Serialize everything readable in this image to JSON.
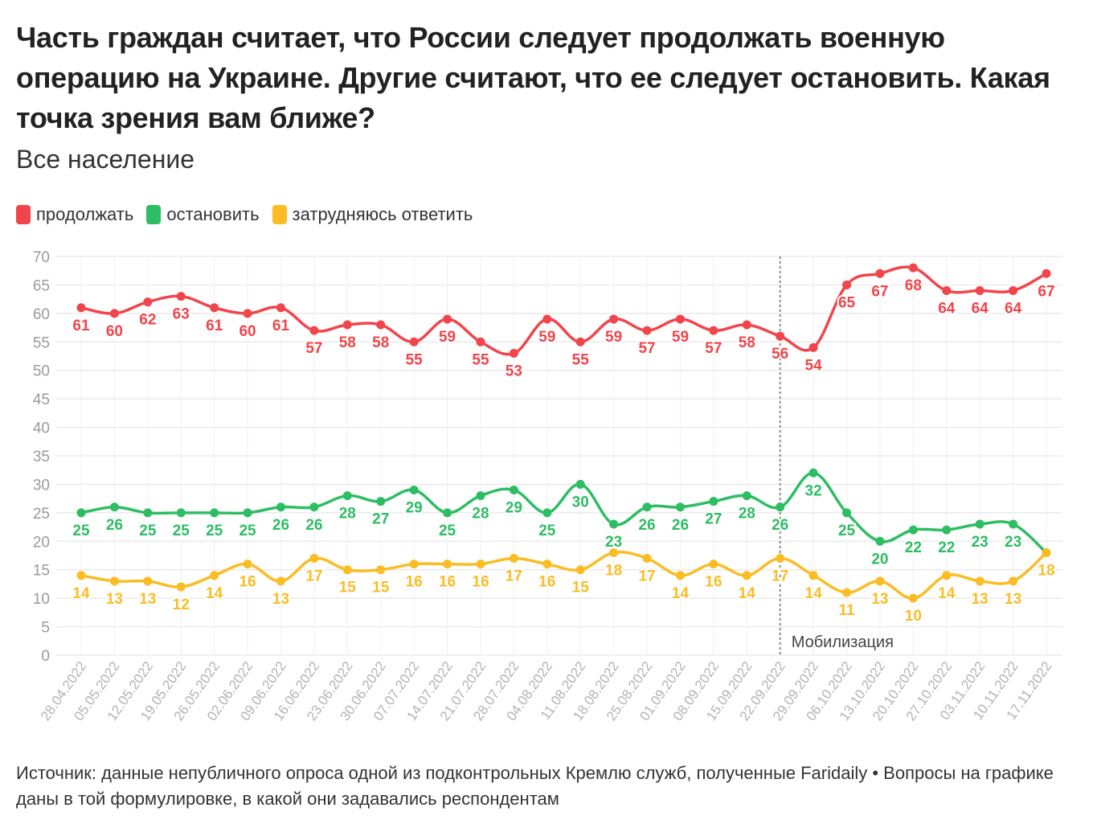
{
  "title": "Часть граждан считает, что России следует продолжать военную операцию на Украине. Другие считают, что ее следует остановить. Какая точка зрения вам ближе?",
  "subtitle": "Все население",
  "legend": [
    {
      "label": "продолжать",
      "color": "#f2444b"
    },
    {
      "label": "остановить",
      "color": "#2dbd63"
    },
    {
      "label": "затрудняюсь ответить",
      "color": "#fbbc24"
    }
  ],
  "source": "Источник: данные непубличного опроса одной из подконтрольных Кремлю служб, полученные Faridaily • Вопросы на графике даны в той формулировке, в какой они задавались респондентам",
  "chart_data": {
    "type": "line",
    "x": [
      "28.04.2022",
      "05.05.2022",
      "12.05.2022",
      "19.05.2022",
      "26.05.2022",
      "02.06.2022",
      "09.06.2022",
      "16.06.2022",
      "23.06.2022",
      "30.06.2022",
      "07.07.2022",
      "14.07.2022",
      "21.07.2022",
      "28.07.2022",
      "04.08.2022",
      "11.08.2022",
      "18.08.2022",
      "25.08.2022",
      "01.09.2022",
      "08.09.2022",
      "15.09.2022",
      "22.09.2022",
      "29.09.2022",
      "06.10.2022",
      "13.10.2022",
      "20.10.2022",
      "27.10.2022",
      "03.11.2022",
      "10.11.2022",
      "17.11.2022"
    ],
    "series": [
      {
        "name": "продолжать",
        "color": "#f2444b",
        "values": [
          61,
          60,
          62,
          63,
          61,
          60,
          61,
          57,
          58,
          58,
          55,
          59,
          55,
          53,
          59,
          55,
          59,
          57,
          59,
          57,
          58,
          56,
          54,
          65,
          67,
          68,
          64,
          64,
          64,
          67
        ]
      },
      {
        "name": "остановить",
        "color": "#2dbd63",
        "values": [
          25,
          26,
          25,
          25,
          25,
          25,
          26,
          26,
          28,
          27,
          29,
          25,
          28,
          29,
          25,
          30,
          23,
          26,
          26,
          27,
          28,
          26,
          32,
          25,
          20,
          22,
          22,
          23,
          23,
          18
        ]
      },
      {
        "name": "затрудняюсь ответить",
        "color": "#fbbc24",
        "values": [
          14,
          13,
          13,
          12,
          14,
          16,
          13,
          17,
          15,
          15,
          16,
          16,
          16,
          17,
          16,
          15,
          18,
          17,
          14,
          16,
          14,
          17,
          14,
          11,
          13,
          10,
          14,
          13,
          13,
          18
        ]
      }
    ],
    "ylim": [
      0,
      70
    ],
    "yticks": [
      0,
      5,
      10,
      15,
      20,
      25,
      30,
      35,
      40,
      45,
      50,
      55,
      60,
      65,
      70
    ],
    "grid": true,
    "legend_position": "top-left",
    "annotations": [
      {
        "type": "vline",
        "x": "22.09.2022",
        "label": "Мобилизация"
      }
    ]
  }
}
